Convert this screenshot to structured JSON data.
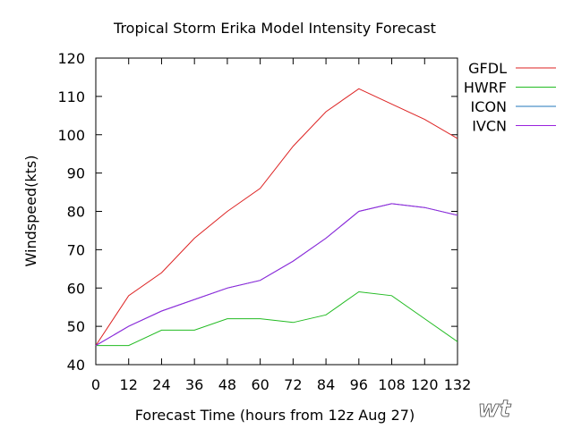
{
  "chart_data": {
    "type": "line",
    "title": "Tropical Storm Erika Model Intensity Forecast",
    "xlabel": "Forecast Time  (hours from 12z Aug 27)",
    "ylabel": "Windspeed(kts)",
    "xlim": [
      0,
      132
    ],
    "ylim": [
      40,
      120
    ],
    "x_ticks": [
      0,
      12,
      24,
      36,
      48,
      60,
      72,
      84,
      96,
      108,
      120,
      132
    ],
    "y_ticks": [
      40,
      50,
      60,
      70,
      80,
      90,
      100,
      110,
      120
    ],
    "legend_position": "top-right",
    "grid": false,
    "x": [
      0,
      12,
      24,
      36,
      48,
      60,
      72,
      84,
      96,
      108,
      120,
      132
    ],
    "series": [
      {
        "name": "GFDL",
        "color": "#dd2222",
        "values": [
          45,
          58,
          64,
          73,
          80,
          86,
          97,
          106,
          112,
          108,
          104,
          99
        ]
      },
      {
        "name": "HWRF",
        "color": "#22bb22",
        "values": [
          45,
          45,
          49,
          49,
          52,
          52,
          51,
          53,
          59,
          58,
          52,
          46
        ]
      },
      {
        "name": "ICON",
        "color": "#2277bb",
        "values": [
          45,
          50,
          54,
          57,
          60,
          62,
          67,
          73,
          80,
          82,
          81,
          79
        ]
      },
      {
        "name": "IVCN",
        "color": "#9922dd",
        "values": [
          45,
          50,
          54,
          57,
          60,
          62,
          67,
          73,
          80,
          82,
          81,
          79
        ]
      }
    ]
  },
  "watermark": "wt"
}
